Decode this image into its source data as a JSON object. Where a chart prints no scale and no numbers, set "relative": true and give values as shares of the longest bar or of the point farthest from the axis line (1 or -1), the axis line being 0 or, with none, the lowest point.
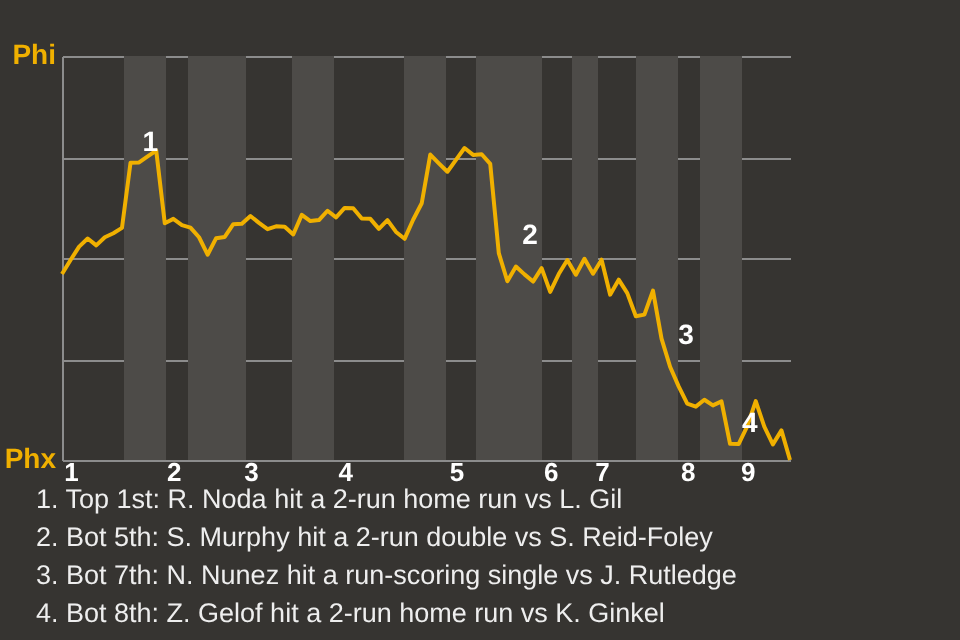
{
  "chart_data": {
    "type": "line",
    "categories": [
      null,
      "1",
      null,
      null,
      null,
      null,
      null,
      null,
      null,
      null,
      null,
      null,
      null,
      "2",
      null,
      null,
      null,
      null,
      null,
      null,
      null,
      null,
      "3",
      null,
      null,
      null,
      null,
      null,
      null,
      null,
      null,
      null,
      null,
      "4",
      null,
      null,
      null,
      null,
      null,
      null,
      null,
      null,
      null,
      null,
      null,
      null,
      "5",
      null,
      null,
      null,
      null,
      null,
      null,
      null,
      null,
      null,
      null,
      "6",
      null,
      null,
      null,
      null,
      null,
      "7",
      null,
      null,
      null,
      null,
      null,
      null,
      null,
      null,
      null,
      "8",
      null,
      null,
      null,
      null,
      null,
      null,
      "9",
      null,
      null,
      null,
      null,
      null
    ],
    "relative": true,
    "grid": "y",
    "series": [
      {
        "color": "#f0b000",
        "values": [
          0.596,
          0.641,
          0.684,
          0.71,
          0.688,
          0.714,
          0.727,
          0.744,
          0.953,
          0.954,
          0.973,
          0.992,
          0.759,
          0.773,
          0.753,
          0.745,
          0.714,
          0.658,
          0.711,
          0.715,
          0.756,
          0.757,
          0.782,
          0.76,
          0.74,
          0.749,
          0.748,
          0.723,
          0.786,
          0.766,
          0.769,
          0.799,
          0.778,
          0.808,
          0.807,
          0.774,
          0.773,
          0.741,
          0.769,
          0.731,
          0.709,
          0.77,
          0.823,
          0.979,
          0.951,
          0.924,
          0.962,
          1,
          0.978,
          0.98,
          0.949,
          0.663,
          0.573,
          0.62,
          0.595,
          0.572,
          0.615,
          0.539,
          0.596,
          0.641,
          0.594,
          0.645,
          0.597,
          0.642,
          0.53,
          0.578,
          0.535,
          0.461,
          0.466,
          0.543,
          0.389,
          0.299,
          0.236,
          0.181,
          0.171,
          0.193,
          0.175,
          0.188,
          0.052,
          0.051,
          0.108,
          0.189,
          0.107,
          0.05,
          0.095,
          0
        ]
      }
    ],
    "annotations": [
      "Phi",
      "Phx",
      {
        "text": "1",
        "y": 0.953
      },
      "2",
      "3",
      {
        "text": "4",
        "y": 0.052
      },
      "1. Top 1st: R. Noda hit a 2-run home run vs L. Gil",
      "2. Bot 5th: S. Murphy hit a 2-run double vs S. Reid-Foley",
      "3. Bot 7th: N. Nunez hit a run-scoring single vs J. Rutledge",
      "4. Bot 8th: Z. Gelof hit a 2-run home run vs K. Ginkel"
    ]
  }
}
